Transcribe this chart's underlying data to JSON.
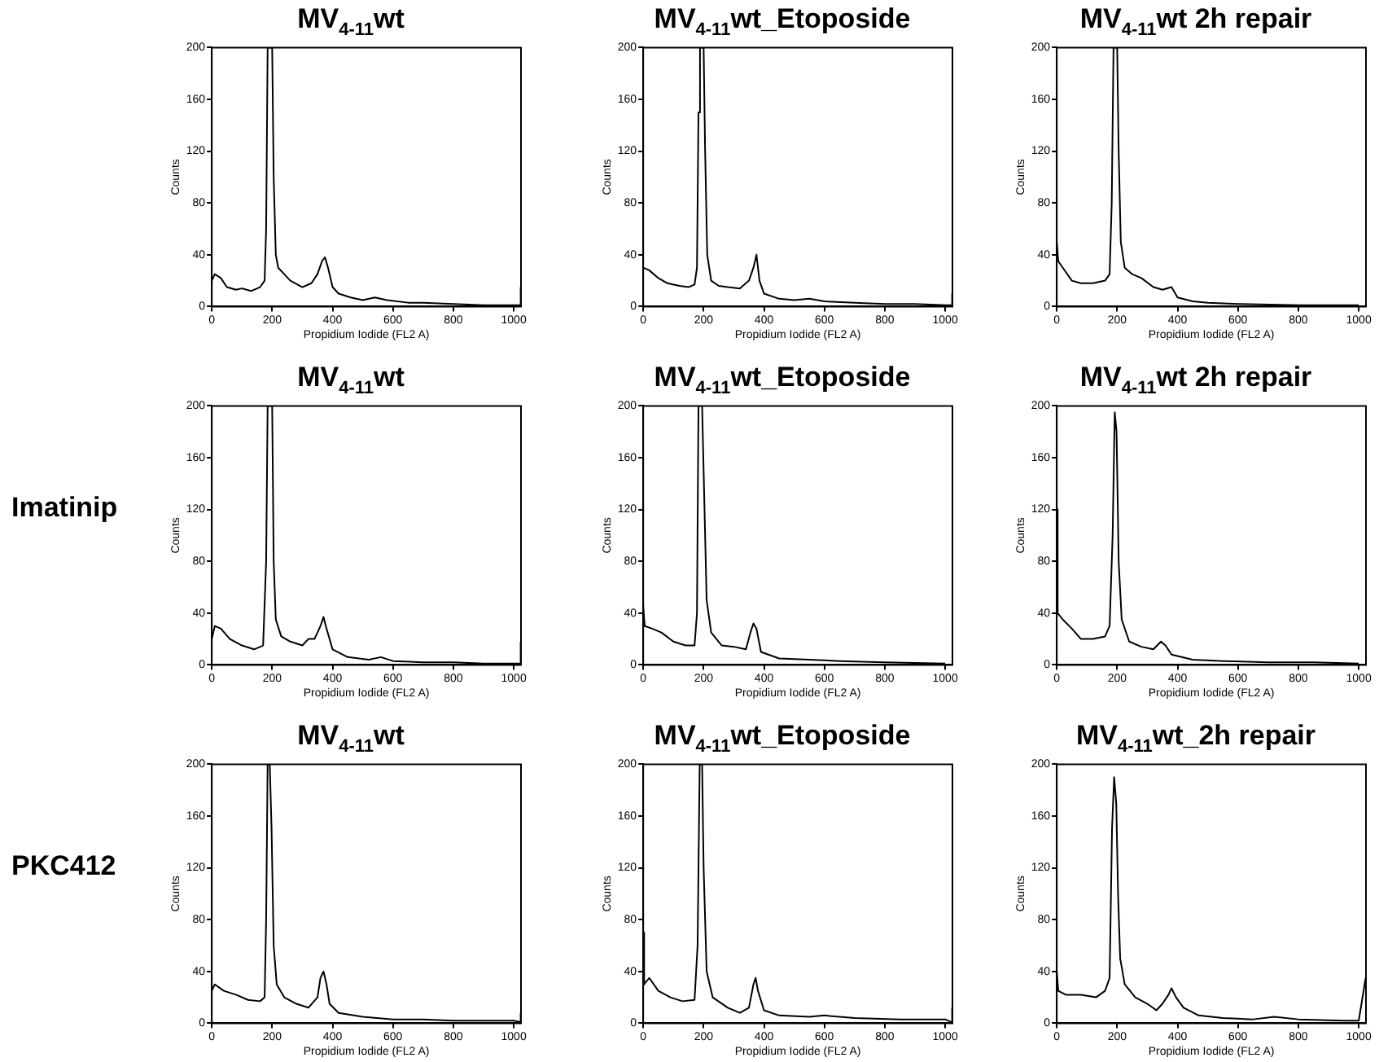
{
  "chart_data": [
    {
      "type": "line",
      "title": "MV$_{4-11}$wt",
      "xlabel": "Propidium Iodide (FL2 A)",
      "ylabel": "Counts",
      "xlim": [
        0,
        1024
      ],
      "ylim": [
        0,
        200
      ],
      "xticks": [
        0,
        200,
        400,
        600,
        800,
        1000
      ],
      "yticks": [
        0,
        40,
        80,
        120,
        160,
        200
      ],
      "grid": false,
      "legend": false,
      "marker": "none",
      "series": [
        {
          "color": "#000000",
          "x": [
            0,
            10,
            30,
            50,
            80,
            100,
            130,
            160,
            175,
            180,
            185,
            200,
            205,
            212,
            220,
            240,
            260,
            300,
            330,
            350,
            365,
            375,
            385,
            400,
            420,
            460,
            500,
            540,
            580,
            650,
            700,
            800,
            900,
            1000,
            1020,
            1023
          ],
          "values": [
            20,
            25,
            22,
            15,
            13,
            14,
            12,
            15,
            20,
            60,
            200,
            200,
            100,
            40,
            30,
            25,
            20,
            15,
            18,
            25,
            35,
            38,
            30,
            15,
            10,
            7,
            5,
            7,
            5,
            3,
            3,
            2,
            1,
            1,
            1,
            15
          ]
        }
      ]
    },
    {
      "type": "line",
      "title": "MV$_{4-11}$wt_Etoposide",
      "xlabel": "Propidium Iodide (FL2 A)",
      "ylabel": "Counts",
      "xlim": [
        0,
        1024
      ],
      "ylim": [
        0,
        200
      ],
      "xticks": [
        0,
        200,
        400,
        600,
        800,
        1000
      ],
      "yticks": [
        0,
        40,
        80,
        120,
        160,
        200
      ],
      "grid": false,
      "legend": false,
      "marker": "none",
      "series": [
        {
          "color": "#000000",
          "x": [
            0,
            20,
            50,
            80,
            120,
            150,
            170,
            178,
            183,
            188,
            200,
            205,
            212,
            225,
            250,
            280,
            320,
            350,
            365,
            375,
            385,
            400,
            450,
            500,
            550,
            600,
            700,
            800,
            900,
            1000,
            1020,
            1023
          ],
          "values": [
            30,
            28,
            22,
            18,
            16,
            15,
            17,
            30,
            150,
            200,
            200,
            120,
            40,
            20,
            16,
            15,
            14,
            20,
            30,
            40,
            20,
            10,
            6,
            5,
            6,
            4,
            3,
            2,
            2,
            1,
            1,
            10
          ]
        }
      ]
    },
    {
      "type": "line",
      "title": "MV$_{4-11}$wt 2h repair",
      "xlabel": "Propidium Iodide (FL2 A)",
      "ylabel": "Counts",
      "xlim": [
        0,
        1024
      ],
      "ylim": [
        0,
        200
      ],
      "xticks": [
        0,
        200,
        400,
        600,
        800,
        1000
      ],
      "yticks": [
        0,
        40,
        80,
        120,
        160,
        200
      ],
      "grid": false,
      "legend": false,
      "marker": "none",
      "series": [
        {
          "color": "#000000",
          "x": [
            0,
            5,
            20,
            50,
            80,
            120,
            160,
            175,
            182,
            188,
            200,
            205,
            212,
            225,
            250,
            280,
            320,
            350,
            380,
            400,
            450,
            500,
            600,
            800,
            1000
          ],
          "values": [
            50,
            35,
            30,
            20,
            18,
            18,
            20,
            25,
            80,
            200,
            200,
            120,
            50,
            30,
            25,
            22,
            15,
            13,
            15,
            7,
            4,
            3,
            2,
            1,
            1
          ]
        }
      ]
    },
    {
      "type": "line",
      "title": "MV$_{4-11}$wt",
      "xlabel": "Propidium Iodide (FL2 A)",
      "ylabel": "Counts",
      "xlim": [
        0,
        1024
      ],
      "ylim": [
        0,
        200
      ],
      "xticks": [
        0,
        200,
        400,
        600,
        800,
        1000
      ],
      "yticks": [
        0,
        40,
        80,
        120,
        160,
        200
      ],
      "grid": false,
      "legend": false,
      "marker": "none",
      "annotations": [
        "Imatinip"
      ],
      "series": [
        {
          "color": "#000000",
          "x": [
            0,
            10,
            30,
            60,
            100,
            140,
            170,
            180,
            185,
            200,
            205,
            212,
            230,
            260,
            300,
            320,
            340,
            360,
            370,
            380,
            400,
            450,
            520,
            560,
            600,
            700,
            800,
            900,
            1000,
            1020,
            1023
          ],
          "values": [
            20,
            30,
            28,
            20,
            15,
            12,
            15,
            80,
            200,
            200,
            80,
            35,
            22,
            18,
            15,
            20,
            20,
            30,
            37,
            28,
            12,
            6,
            4,
            6,
            3,
            2,
            2,
            1,
            1,
            1,
            18
          ]
        }
      ]
    },
    {
      "type": "line",
      "title": "MV$_{4-11}$wt_Etoposide",
      "xlabel": "Propidium Iodide (FL2 A)",
      "ylabel": "Counts",
      "xlim": [
        0,
        1024
      ],
      "ylim": [
        0,
        200
      ],
      "xticks": [
        0,
        200,
        400,
        600,
        800,
        1000
      ],
      "yticks": [
        0,
        40,
        80,
        120,
        160,
        200
      ],
      "grid": false,
      "legend": false,
      "marker": "none",
      "series": [
        {
          "color": "#000000",
          "x": [
            0,
            5,
            30,
            60,
            100,
            140,
            170,
            178,
            183,
            195,
            200,
            210,
            225,
            260,
            300,
            340,
            355,
            365,
            375,
            390,
            450,
            550,
            650,
            800,
            1000
          ],
          "values": [
            45,
            30,
            28,
            25,
            18,
            15,
            15,
            40,
            200,
            200,
            150,
            50,
            25,
            15,
            14,
            12,
            25,
            32,
            28,
            10,
            5,
            4,
            3,
            2,
            1
          ]
        }
      ]
    },
    {
      "type": "line",
      "title": "MV$_{4-11}$wt 2h repair",
      "xlabel": "Propidium Iodide (FL2 A)",
      "ylabel": "Counts",
      "xlim": [
        0,
        1024
      ],
      "ylim": [
        0,
        200
      ],
      "xticks": [
        0,
        200,
        400,
        600,
        800,
        1000
      ],
      "yticks": [
        0,
        40,
        80,
        120,
        160,
        200
      ],
      "grid": false,
      "legend": false,
      "marker": "none",
      "series": [
        {
          "color": "#000000",
          "x": [
            0,
            3,
            20,
            50,
            80,
            120,
            160,
            175,
            185,
            192,
            198,
            205,
            215,
            240,
            280,
            320,
            345,
            360,
            380,
            450,
            550,
            700,
            850,
            1000
          ],
          "values": [
            120,
            40,
            35,
            28,
            20,
            20,
            22,
            30,
            100,
            195,
            180,
            80,
            35,
            18,
            14,
            12,
            18,
            15,
            8,
            4,
            3,
            2,
            2,
            1
          ]
        }
      ]
    },
    {
      "type": "line",
      "title": "MV$_{4-11}$wt",
      "xlabel": "Propidium Iodide (FL2 A)",
      "ylabel": "Counts",
      "xlim": [
        0,
        1024
      ],
      "ylim": [
        0,
        200
      ],
      "xticks": [
        0,
        200,
        400,
        600,
        800,
        1000
      ],
      "yticks": [
        0,
        40,
        80,
        120,
        160,
        200
      ],
      "grid": false,
      "legend": false,
      "marker": "none",
      "annotations": [
        "PKC412"
      ],
      "series": [
        {
          "color": "#000000",
          "x": [
            0,
            10,
            40,
            80,
            120,
            160,
            175,
            180,
            185,
            192,
            198,
            205,
            215,
            240,
            280,
            320,
            350,
            360,
            370,
            380,
            390,
            420,
            500,
            600,
            700,
            800,
            900,
            1000,
            1020,
            1023
          ],
          "values": [
            25,
            30,
            25,
            22,
            18,
            17,
            20,
            80,
            200,
            200,
            150,
            60,
            30,
            20,
            15,
            12,
            20,
            35,
            40,
            30,
            15,
            8,
            5,
            3,
            3,
            2,
            2,
            2,
            1,
            8
          ]
        }
      ]
    },
    {
      "type": "line",
      "title": "MV$_{4-11}$wt_Etoposide",
      "xlabel": "Propidium Iodide (FL2 A)",
      "ylabel": "Counts",
      "xlim": [
        0,
        1024
      ],
      "ylim": [
        0,
        200
      ],
      "xticks": [
        0,
        200,
        400,
        600,
        800,
        1000
      ],
      "yticks": [
        0,
        40,
        80,
        120,
        160,
        200
      ],
      "grid": false,
      "legend": false,
      "marker": "none",
      "series": [
        {
          "color": "#000000",
          "x": [
            0,
            3,
            20,
            50,
            90,
            130,
            170,
            180,
            187,
            195,
            200,
            210,
            230,
            280,
            320,
            350,
            365,
            372,
            380,
            400,
            450,
            550,
            600,
            700,
            850,
            1000,
            1020,
            1023
          ],
          "values": [
            70,
            30,
            35,
            25,
            20,
            17,
            18,
            60,
            200,
            200,
            120,
            40,
            20,
            12,
            8,
            12,
            30,
            35,
            25,
            10,
            6,
            5,
            6,
            4,
            3,
            3,
            1,
            12
          ]
        }
      ]
    },
    {
      "type": "line",
      "title": "MV$_{4-11}$wt_2h repair",
      "xlabel": "Propidium Iodide (FL2 A)",
      "ylabel": "Counts",
      "xlim": [
        0,
        1024
      ],
      "ylim": [
        0,
        200
      ],
      "xticks": [
        0,
        200,
        400,
        600,
        800,
        1000
      ],
      "yticks": [
        0,
        40,
        80,
        120,
        160,
        200
      ],
      "grid": false,
      "legend": false,
      "marker": "none",
      "series": [
        {
          "color": "#000000",
          "x": [
            0,
            5,
            30,
            80,
            130,
            160,
            175,
            183,
            190,
            197,
            203,
            210,
            225,
            260,
            300,
            330,
            350,
            370,
            380,
            395,
            420,
            470,
            550,
            650,
            720,
            800,
            950,
            1000,
            1023
          ],
          "values": [
            40,
            25,
            22,
            22,
            20,
            25,
            35,
            150,
            190,
            170,
            100,
            50,
            30,
            20,
            15,
            10,
            15,
            22,
            27,
            20,
            12,
            6,
            4,
            3,
            5,
            3,
            2,
            2,
            35
          ]
        }
      ]
    }
  ]
}
